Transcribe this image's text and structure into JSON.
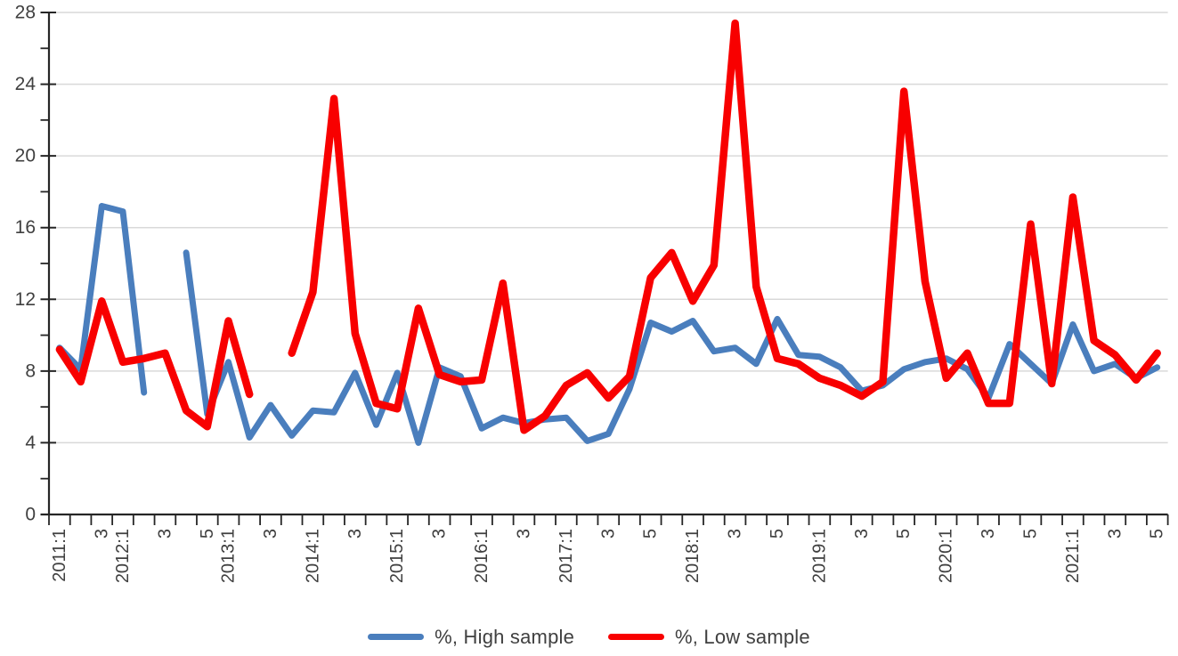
{
  "chart_data": {
    "type": "line",
    "title": "",
    "xlabel": "",
    "ylabel": "",
    "ylim": [
      0,
      28
    ],
    "y_ticks": [
      0,
      4,
      8,
      12,
      16,
      20,
      24,
      28
    ],
    "y_minor_tick_step": 2,
    "grid": "horizontal",
    "legend_position": "bottom",
    "x_labels": [
      "2011:1",
      "",
      "3",
      "2012:1",
      "",
      "3",
      "",
      "5",
      "2013:1",
      "",
      "3",
      "",
      "2014:1",
      "",
      "3",
      "",
      "2015:1",
      "",
      "3",
      "",
      "2016:1",
      "",
      "3",
      "",
      "2017:1",
      "",
      "3",
      "",
      "5",
      "",
      "2018:1",
      "",
      "3",
      "",
      "5",
      "",
      "2019:1",
      "",
      "3",
      "",
      "5",
      "",
      "2020:1",
      "",
      "3",
      "",
      "5",
      "",
      "2021:1",
      "",
      "3",
      "",
      "5"
    ],
    "series": [
      {
        "name": "%, High sample",
        "color": "#4a7ebd",
        "values": [
          9.3,
          8.1,
          17.2,
          16.9,
          6.8,
          null,
          14.6,
          5.6,
          8.5,
          4.3,
          6.1,
          4.4,
          5.8,
          5.7,
          7.9,
          5.0,
          7.9,
          4.0,
          8.2,
          7.7,
          4.8,
          5.4,
          5.1,
          5.3,
          5.4,
          4.1,
          4.5,
          7.0,
          10.7,
          10.2,
          10.8,
          9.1,
          9.3,
          8.4,
          10.9,
          8.9,
          8.8,
          8.2,
          6.9,
          7.2,
          8.1,
          8.5,
          8.7,
          8.1,
          6.5,
          9.5,
          8.4,
          7.3,
          10.6,
          8.0,
          8.4,
          7.6,
          8.2
        ]
      },
      {
        "name": "%, Low sample",
        "color": "#f80000",
        "values": [
          9.2,
          7.4,
          11.9,
          8.5,
          8.7,
          9.0,
          5.8,
          4.9,
          10.8,
          6.7,
          null,
          9.0,
          12.4,
          23.2,
          10.1,
          6.2,
          5.9,
          11.5,
          7.8,
          7.4,
          7.5,
          12.9,
          4.7,
          5.5,
          7.2,
          7.9,
          6.5,
          7.7,
          13.2,
          14.6,
          11.9,
          13.9,
          27.4,
          12.7,
          8.7,
          8.4,
          7.6,
          7.2,
          6.6,
          7.4,
          23.6,
          13.0,
          7.6,
          9.0,
          6.2,
          6.2,
          16.2,
          7.3,
          17.7,
          9.7,
          8.9,
          7.5,
          9.0
        ]
      }
    ]
  },
  "colors": {
    "grid_line": "#d9d9d9",
    "axis_line": "#262626",
    "tick_label": "#404040"
  }
}
